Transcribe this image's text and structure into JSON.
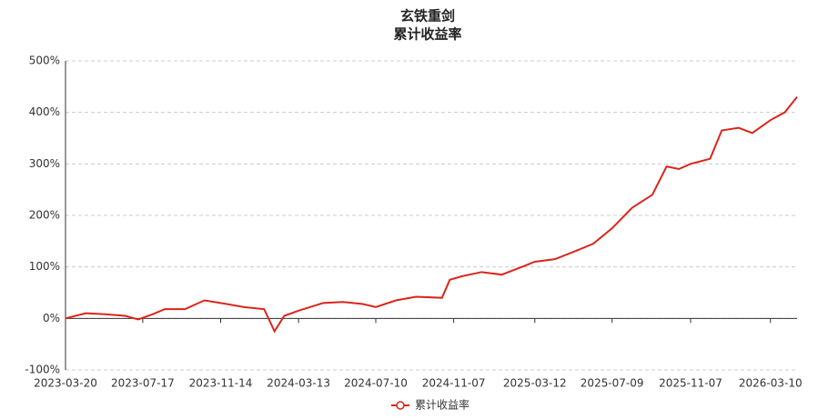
{
  "chart_data": {
    "type": "line",
    "title": "玄铁重剑",
    "subtitle": "累计收益率",
    "series": [
      {
        "name": "累计收益率",
        "color": "#d9261c",
        "x": [
          "2023-03-20",
          "2023-04-20",
          "2023-05-20",
          "2023-06-20",
          "2023-07-10",
          "2023-08-01",
          "2023-08-20",
          "2023-09-20",
          "2023-10-20",
          "2023-11-14",
          "2023-12-20",
          "2024-01-20",
          "2024-02-05",
          "2024-02-20",
          "2024-03-13",
          "2024-04-20",
          "2024-05-20",
          "2024-06-20",
          "2024-07-10",
          "2024-08-10",
          "2024-09-10",
          "2024-10-20",
          "2024-11-01",
          "2024-11-20",
          "2024-12-20",
          "2025-01-20",
          "2025-02-20",
          "2025-03-12",
          "2025-04-12",
          "2025-05-12",
          "2025-06-10",
          "2025-07-09",
          "2025-08-09",
          "2025-09-09",
          "2025-10-01",
          "2025-10-20",
          "2025-11-07",
          "2025-12-07",
          "2025-12-25",
          "2026-01-20",
          "2026-02-10",
          "2026-03-10",
          "2026-04-01",
          "2026-04-20"
        ],
        "values": [
          0,
          10,
          8,
          5,
          -2,
          8,
          18,
          18,
          35,
          30,
          22,
          18,
          -25,
          5,
          15,
          30,
          32,
          28,
          22,
          35,
          42,
          40,
          75,
          82,
          90,
          85,
          100,
          110,
          115,
          130,
          145,
          175,
          215,
          240,
          295,
          290,
          300,
          310,
          365,
          370,
          360,
          385,
          400,
          430
        ]
      }
    ],
    "xlim": [
      "2023-03-20",
      "2026-04-20"
    ],
    "xticks": [
      "2023-03-20",
      "2023-07-17",
      "2023-11-14",
      "2024-03-13",
      "2024-07-10",
      "2024-11-07",
      "2025-03-12",
      "2025-07-09",
      "2025-11-07",
      "2026-03-10"
    ],
    "ylim": [
      -100,
      500
    ],
    "yticks": [
      {
        "value": -100,
        "label": "-100%"
      },
      {
        "value": 0,
        "label": "0%"
      },
      {
        "value": 100,
        "label": "100%"
      },
      {
        "value": 200,
        "label": "200%"
      },
      {
        "value": 300,
        "label": "300%"
      },
      {
        "value": 400,
        "label": "400%"
      },
      {
        "value": 500,
        "label": "500%"
      }
    ],
    "grid": true,
    "legend": "bottom"
  }
}
